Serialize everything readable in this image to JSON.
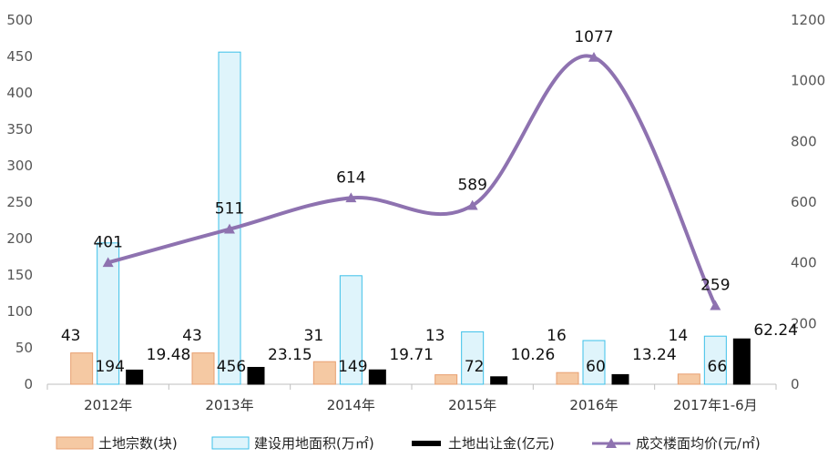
{
  "chart_data": {
    "type": "bar",
    "categories": [
      "2012年",
      "2013年",
      "2014年",
      "2015年",
      "2016年",
      "2017年1-6月"
    ],
    "axes": {
      "left": {
        "min": 0,
        "max": 500,
        "step": 50,
        "ticks": [
          "0",
          "50",
          "100",
          "150",
          "200",
          "250",
          "300",
          "350",
          "400",
          "450",
          "500"
        ]
      },
      "right": {
        "min": 0,
        "max": 1200,
        "step": 200,
        "ticks": [
          "0",
          "200",
          "400",
          "600",
          "800",
          "1000",
          "1200"
        ]
      }
    },
    "series": [
      {
        "name": "土地宗数(块)",
        "kind": "bar",
        "axis": "left",
        "values": [
          43,
          43,
          31,
          13,
          16,
          14
        ],
        "labels": [
          "43",
          "43",
          "31",
          "13",
          "16",
          "14"
        ],
        "color": "#f5c9a3",
        "stroke": "#e8a070"
      },
      {
        "name": "建设用地面积(万㎡)",
        "kind": "bar",
        "axis": "left",
        "values": [
          194,
          456,
          149,
          72,
          60,
          66
        ],
        "labels": [
          "194",
          "456",
          "149",
          "72",
          "60",
          "66"
        ],
        "color": "#dff4fb",
        "stroke": "#3cc0e8"
      },
      {
        "name": "土地出让金(亿元)",
        "kind": "bar",
        "axis": "left",
        "values": [
          19.48,
          23.15,
          19.71,
          10.26,
          13.24,
          62.24
        ],
        "labels": [
          "19.48",
          "23.15",
          "19.71",
          "10.26",
          "13.24",
          "62.24"
        ],
        "color": "#000000",
        "stroke": "#000000"
      },
      {
        "name": "成交楼面均价(元/㎡)",
        "kind": "line",
        "axis": "right",
        "values": [
          401,
          511,
          614,
          589,
          1077,
          259
        ],
        "labels": [
          "401",
          "511",
          "614",
          "589",
          "1077",
          "259"
        ],
        "color": "#8e72b0"
      }
    ],
    "legend_position": "bottom",
    "grid": false
  }
}
